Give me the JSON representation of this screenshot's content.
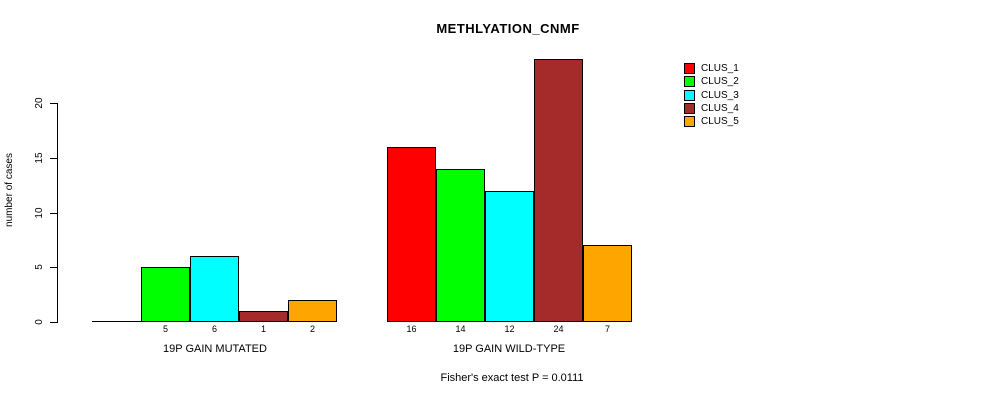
{
  "chart_data": {
    "type": "bar",
    "title": "METHLYATION_CNMF",
    "xlabel": "",
    "ylabel": "number of cases",
    "yticks": [
      0,
      5,
      10,
      15,
      20
    ],
    "ylim": [
      0,
      24
    ],
    "grid": false,
    "legend_position": "right",
    "legend": [
      {
        "name": "CLUS_1",
        "color": "#FF0000"
      },
      {
        "name": "CLUS_2",
        "color": "#00FF00"
      },
      {
        "name": "CLUS_3",
        "color": "#00FFFF"
      },
      {
        "name": "CLUS_4",
        "color": "#A52A2A"
      },
      {
        "name": "CLUS_5",
        "color": "#FFA500"
      }
    ],
    "groups": [
      {
        "label": "19P GAIN MUTATED",
        "series": [
          "CLUS_1",
          "CLUS_2",
          "CLUS_3",
          "CLUS_4",
          "CLUS_5"
        ],
        "values": [
          0,
          5,
          6,
          1,
          2
        ],
        "bar_labels": [
          "",
          "5",
          "6",
          "1",
          "2"
        ]
      },
      {
        "label": "19P GAIN WILD-TYPE",
        "series": [
          "CLUS_1",
          "CLUS_2",
          "CLUS_3",
          "CLUS_4",
          "CLUS_5"
        ],
        "values": [
          16,
          14,
          12,
          24,
          7
        ],
        "bar_labels": [
          "16",
          "14",
          "12",
          "24",
          "7"
        ]
      }
    ],
    "annotation": "Fisher's exact test P = 0.0111"
  }
}
